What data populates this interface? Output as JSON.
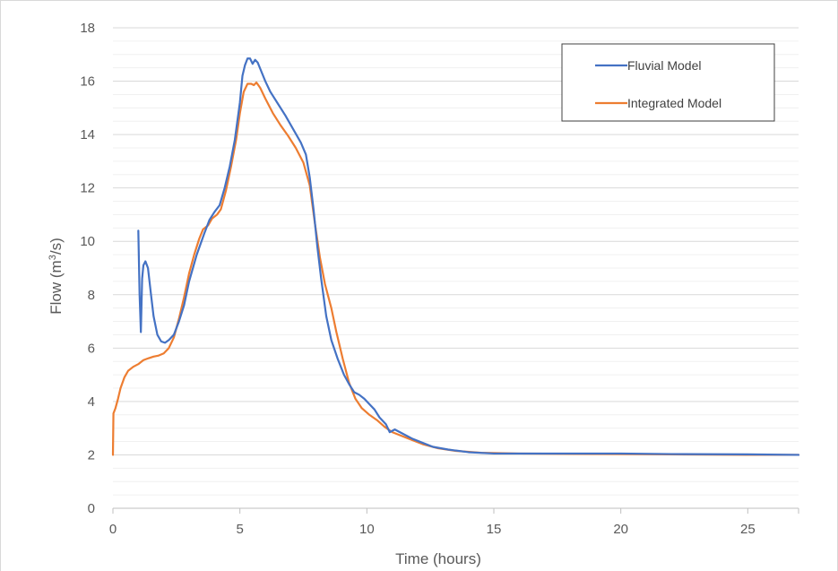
{
  "chart_data": {
    "type": "line",
    "title": "",
    "xlabel": "Time (hours)",
    "ylabel_main": "Flow (m",
    "ylabel_sup": "3",
    "ylabel_tail": "/s)",
    "xlim": [
      0,
      27
    ],
    "ylim": [
      0,
      18
    ],
    "xticks": [
      0,
      5,
      10,
      15,
      20,
      25
    ],
    "yticks": [
      0,
      2,
      4,
      6,
      8,
      10,
      12,
      14,
      16,
      18
    ],
    "minor_grid_step": 0.5,
    "legend_position": "top-right",
    "series": [
      {
        "name": "Fluvial Model",
        "color": "#4472C4",
        "points": [
          [
            1.0,
            10.4
          ],
          [
            1.05,
            8.0
          ],
          [
            1.1,
            6.6
          ],
          [
            1.15,
            8.6
          ],
          [
            1.2,
            9.1
          ],
          [
            1.28,
            9.25
          ],
          [
            1.38,
            9.0
          ],
          [
            1.5,
            8.0
          ],
          [
            1.6,
            7.2
          ],
          [
            1.75,
            6.5
          ],
          [
            1.9,
            6.25
          ],
          [
            2.05,
            6.2
          ],
          [
            2.2,
            6.3
          ],
          [
            2.4,
            6.5
          ],
          [
            2.6,
            7.0
          ],
          [
            2.8,
            7.6
          ],
          [
            3.0,
            8.5
          ],
          [
            3.3,
            9.5
          ],
          [
            3.6,
            10.3
          ],
          [
            3.8,
            10.8
          ],
          [
            4.0,
            11.1
          ],
          [
            4.2,
            11.35
          ],
          [
            4.4,
            12.0
          ],
          [
            4.6,
            12.8
          ],
          [
            4.8,
            13.8
          ],
          [
            5.0,
            15.2
          ],
          [
            5.1,
            16.2
          ],
          [
            5.2,
            16.6
          ],
          [
            5.3,
            16.85
          ],
          [
            5.4,
            16.85
          ],
          [
            5.5,
            16.65
          ],
          [
            5.6,
            16.8
          ],
          [
            5.7,
            16.7
          ],
          [
            5.85,
            16.35
          ],
          [
            6.0,
            16.0
          ],
          [
            6.2,
            15.6
          ],
          [
            6.5,
            15.15
          ],
          [
            6.8,
            14.7
          ],
          [
            7.1,
            14.2
          ],
          [
            7.4,
            13.7
          ],
          [
            7.6,
            13.25
          ],
          [
            7.75,
            12.4
          ],
          [
            7.9,
            11.2
          ],
          [
            8.05,
            9.8
          ],
          [
            8.2,
            8.6
          ],
          [
            8.4,
            7.2
          ],
          [
            8.6,
            6.3
          ],
          [
            8.85,
            5.6
          ],
          [
            9.1,
            5.0
          ],
          [
            9.3,
            4.65
          ],
          [
            9.5,
            4.35
          ],
          [
            9.7,
            4.25
          ],
          [
            9.9,
            4.1
          ],
          [
            10.1,
            3.9
          ],
          [
            10.3,
            3.7
          ],
          [
            10.5,
            3.4
          ],
          [
            10.75,
            3.15
          ],
          [
            10.9,
            2.85
          ],
          [
            11.1,
            2.95
          ],
          [
            11.4,
            2.8
          ],
          [
            11.8,
            2.6
          ],
          [
            12.2,
            2.45
          ],
          [
            12.6,
            2.3
          ],
          [
            13.2,
            2.2
          ],
          [
            14.0,
            2.1
          ],
          [
            15.0,
            2.05
          ],
          [
            17.0,
            2.05
          ],
          [
            20.0,
            2.05
          ],
          [
            22.0,
            2.03
          ],
          [
            25.0,
            2.02
          ],
          [
            27.0,
            2.0
          ]
        ]
      },
      {
        "name": "Integrated Model",
        "color": "#ED7D31",
        "points": [
          [
            0.0,
            2.0
          ],
          [
            0.02,
            3.55
          ],
          [
            0.1,
            3.75
          ],
          [
            0.2,
            4.1
          ],
          [
            0.3,
            4.5
          ],
          [
            0.45,
            4.9
          ],
          [
            0.6,
            5.15
          ],
          [
            0.8,
            5.3
          ],
          [
            1.0,
            5.4
          ],
          [
            1.2,
            5.55
          ],
          [
            1.4,
            5.62
          ],
          [
            1.6,
            5.68
          ],
          [
            1.8,
            5.72
          ],
          [
            2.0,
            5.8
          ],
          [
            2.2,
            6.0
          ],
          [
            2.4,
            6.4
          ],
          [
            2.6,
            7.1
          ],
          [
            2.8,
            7.9
          ],
          [
            3.0,
            8.8
          ],
          [
            3.2,
            9.5
          ],
          [
            3.4,
            10.1
          ],
          [
            3.55,
            10.45
          ],
          [
            3.75,
            10.6
          ],
          [
            3.9,
            10.85
          ],
          [
            4.1,
            11.0
          ],
          [
            4.25,
            11.2
          ],
          [
            4.45,
            11.9
          ],
          [
            4.65,
            12.8
          ],
          [
            4.85,
            13.8
          ],
          [
            5.0,
            14.8
          ],
          [
            5.15,
            15.6
          ],
          [
            5.3,
            15.9
          ],
          [
            5.45,
            15.9
          ],
          [
            5.55,
            15.85
          ],
          [
            5.65,
            15.95
          ],
          [
            5.8,
            15.75
          ],
          [
            6.0,
            15.35
          ],
          [
            6.3,
            14.8
          ],
          [
            6.6,
            14.35
          ],
          [
            6.9,
            13.95
          ],
          [
            7.2,
            13.5
          ],
          [
            7.5,
            12.95
          ],
          [
            7.75,
            12.1
          ],
          [
            7.95,
            10.7
          ],
          [
            8.15,
            9.4
          ],
          [
            8.35,
            8.4
          ],
          [
            8.6,
            7.5
          ],
          [
            8.8,
            6.6
          ],
          [
            9.05,
            5.6
          ],
          [
            9.3,
            4.7
          ],
          [
            9.55,
            4.1
          ],
          [
            9.8,
            3.75
          ],
          [
            10.1,
            3.5
          ],
          [
            10.4,
            3.3
          ],
          [
            10.7,
            3.05
          ],
          [
            11.0,
            2.85
          ],
          [
            11.4,
            2.7
          ],
          [
            11.8,
            2.55
          ],
          [
            12.2,
            2.4
          ],
          [
            12.8,
            2.25
          ],
          [
            13.5,
            2.15
          ],
          [
            14.5,
            2.08
          ],
          [
            16.0,
            2.05
          ],
          [
            20.0,
            2.03
          ],
          [
            25.0,
            2.0
          ],
          [
            27.0,
            2.0
          ]
        ]
      }
    ]
  }
}
